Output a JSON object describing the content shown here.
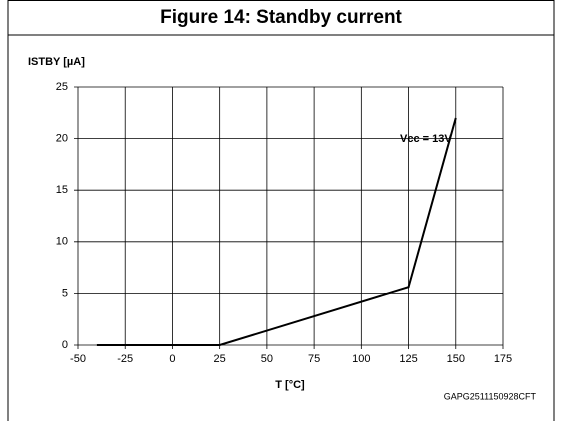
{
  "chart_data": {
    "type": "line",
    "title": "Figure 14: Standby current",
    "ylabel": "ISTBY [µA]",
    "xlabel": "T [°C]",
    "annotation": "Vcc = 13V",
    "code": "GAPG2511150928CFT",
    "x": [
      -40,
      25,
      125,
      150
    ],
    "series": [
      {
        "name": "Vcc = 13V",
        "color": "#000000",
        "values": [
          0,
          0,
          5.6,
          22
        ]
      }
    ],
    "xlim": [
      -50,
      175
    ],
    "xticks": [
      -50,
      -25,
      0,
      25,
      50,
      75,
      100,
      125,
      150,
      175
    ],
    "ylim": [
      0,
      25
    ],
    "yticks": [
      0,
      5,
      10,
      15,
      20,
      25
    ],
    "grid": true
  }
}
